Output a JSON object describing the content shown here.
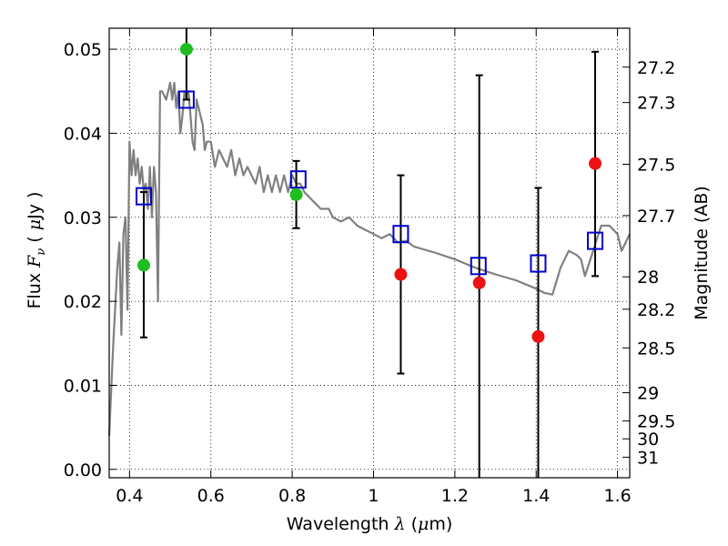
{
  "chart_data": {
    "type": "scatter",
    "xlabel": {
      "prefix": "Wavelength  ",
      "symbol": "λ",
      "unit_open": " (",
      "unit_mu": "μ",
      "unit_close": "m)"
    },
    "ylabel": {
      "prefix": "Flux  ",
      "symbol": "F",
      "sub": "ν",
      "unit_open": "  ( ",
      "unit_mu": "μ",
      "unit_close": "Jy )"
    },
    "y2label": "Magnitude (AB)",
    "xlim": [
      0.35,
      1.63
    ],
    "ylim": [
      -0.001,
      0.0525
    ],
    "grid": true,
    "x_ticks": [
      0.4,
      0.6,
      0.8,
      1.0,
      1.2,
      1.4,
      1.6
    ],
    "x_tick_labels": [
      "0.4",
      "0.6",
      "0.8",
      "1",
      "1.2",
      "1.4",
      "1.6"
    ],
    "y_ticks": [
      0.0,
      0.01,
      0.02,
      0.03,
      0.04,
      0.05
    ],
    "y_tick_labels": [
      "0.00",
      "0.01",
      "0.02",
      "0.03",
      "0.04",
      "0.05"
    ],
    "mag_ticks": [
      {
        "label": "27.2",
        "mag": 27.2
      },
      {
        "label": "27.3",
        "mag": 27.3
      },
      {
        "label": "27.5",
        "mag": 27.5
      },
      {
        "label": "27.7",
        "mag": 27.7
      },
      {
        "label": "28",
        "mag": 28.0
      },
      {
        "label": "28.2",
        "mag": 28.2
      },
      {
        "label": "28.5",
        "mag": 28.5
      },
      {
        "label": "29",
        "mag": 29.0
      },
      {
        "label": "29.5",
        "mag": 29.5
      },
      {
        "label": "30",
        "mag": 30.0
      },
      {
        "label": "31",
        "mag": 31.0
      }
    ],
    "model_spectrum": {
      "color": "#808080",
      "x": [
        0.35,
        0.36,
        0.37,
        0.375,
        0.38,
        0.385,
        0.39,
        0.395,
        0.4,
        0.405,
        0.41,
        0.415,
        0.42,
        0.425,
        0.43,
        0.435,
        0.44,
        0.445,
        0.45,
        0.455,
        0.46,
        0.465,
        0.47,
        0.475,
        0.48,
        0.49,
        0.5,
        0.505,
        0.51,
        0.515,
        0.52,
        0.525,
        0.53,
        0.535,
        0.54,
        0.545,
        0.55,
        0.555,
        0.56,
        0.565,
        0.57,
        0.575,
        0.58,
        0.585,
        0.59,
        0.6,
        0.61,
        0.62,
        0.63,
        0.64,
        0.65,
        0.66,
        0.67,
        0.68,
        0.69,
        0.7,
        0.71,
        0.72,
        0.73,
        0.74,
        0.75,
        0.76,
        0.77,
        0.78,
        0.79,
        0.8,
        0.81,
        0.82,
        0.83,
        0.85,
        0.87,
        0.89,
        0.9,
        0.92,
        0.94,
        0.96,
        0.98,
        1.0,
        1.02,
        1.04,
        1.06,
        1.08,
        1.1,
        1.15,
        1.2,
        1.25,
        1.3,
        1.35,
        1.4,
        1.42,
        1.44,
        1.46,
        1.48,
        1.5,
        1.51,
        1.52,
        1.54,
        1.56,
        1.58,
        1.6,
        1.61,
        1.62,
        1.63
      ],
      "y": [
        0.004,
        0.015,
        0.024,
        0.027,
        0.016,
        0.028,
        0.03,
        0.019,
        0.039,
        0.035,
        0.038,
        0.035,
        0.037,
        0.034,
        0.036,
        0.033,
        0.034,
        0.031,
        0.036,
        0.03,
        0.036,
        0.033,
        0.02,
        0.045,
        0.045,
        0.044,
        0.046,
        0.044,
        0.046,
        0.043,
        0.045,
        0.04,
        0.042,
        0.045,
        0.044,
        0.045,
        0.042,
        0.039,
        0.038,
        0.044,
        0.043,
        0.042,
        0.041,
        0.038,
        0.039,
        0.039,
        0.036,
        0.038,
        0.037,
        0.036,
        0.038,
        0.035,
        0.037,
        0.035,
        0.036,
        0.035,
        0.034,
        0.036,
        0.033,
        0.035,
        0.033,
        0.035,
        0.033,
        0.035,
        0.033,
        0.035,
        0.034,
        0.034,
        0.033,
        0.032,
        0.031,
        0.031,
        0.03,
        0.0295,
        0.03,
        0.029,
        0.0285,
        0.028,
        0.0275,
        0.028,
        0.027,
        0.0272,
        0.0265,
        0.0258,
        0.025,
        0.024,
        0.0232,
        0.0225,
        0.0215,
        0.021,
        0.0208,
        0.024,
        0.026,
        0.0255,
        0.025,
        0.023,
        0.026,
        0.029,
        0.029,
        0.028,
        0.026,
        0.027,
        0.028
      ]
    },
    "model_band_fluxes": {
      "marker": "open-square",
      "color": "#0000cc",
      "points": [
        {
          "x": 0.435,
          "y": 0.0325
        },
        {
          "x": 0.54,
          "y": 0.044
        },
        {
          "x": 0.815,
          "y": 0.0345
        },
        {
          "x": 1.067,
          "y": 0.028
        },
        {
          "x": 1.258,
          "y": 0.0242
        },
        {
          "x": 1.405,
          "y": 0.0245
        },
        {
          "x": 1.545,
          "y": 0.0272
        }
      ]
    },
    "observed_fluxes": {
      "marker": "filled-circle",
      "points": [
        {
          "x": 0.435,
          "y": 0.0243,
          "yerr_low": 0.0157,
          "yerr_high": 0.033,
          "color": "#1fbd1f"
        },
        {
          "x": 0.54,
          "y": 0.05,
          "yerr_low": 0.044,
          "yerr_high": 0.053,
          "color": "#1fbd1f"
        },
        {
          "x": 0.81,
          "y": 0.0327,
          "yerr_low": 0.0287,
          "yerr_high": 0.0367,
          "color": "#1fbd1f"
        },
        {
          "x": 1.067,
          "y": 0.0232,
          "yerr_low": 0.0114,
          "yerr_high": 0.035,
          "color": "#ee1111"
        },
        {
          "x": 1.26,
          "y": 0.0222,
          "yerr_low": -0.0025,
          "yerr_high": 0.0469,
          "color": "#ee1111"
        },
        {
          "x": 1.405,
          "y": 0.0158,
          "yerr_low": -0.0025,
          "yerr_high": 0.0335,
          "color": "#ee1111"
        },
        {
          "x": 1.545,
          "y": 0.0364,
          "yerr_low": 0.023,
          "yerr_high": 0.0497,
          "color": "#ee1111"
        }
      ]
    }
  }
}
